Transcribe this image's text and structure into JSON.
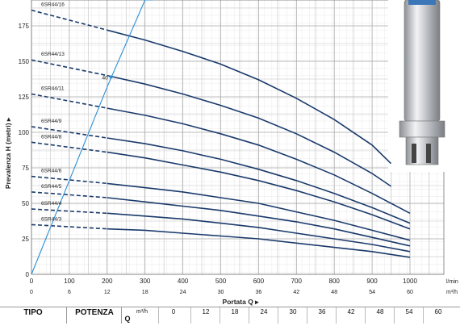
{
  "chart_data": {
    "type": "line",
    "xlabel": "Portata Q",
    "ylabel": "Prevalenza H (metri)",
    "x_unit_primary": "l/min",
    "x_unit_secondary": "m³/h",
    "xlim": [
      0,
      1050
    ],
    "ylim": [
      0,
      200
    ],
    "x_ticks": [
      0,
      100,
      200,
      300,
      400,
      500,
      600,
      700,
      800,
      900,
      1000
    ],
    "x_ticks_secondary": [
      0,
      6,
      12,
      18,
      24,
      30,
      36,
      42,
      48,
      54,
      60
    ],
    "y_ticks": [
      0,
      25,
      50,
      75,
      100,
      125,
      150,
      175
    ],
    "grid": true,
    "series": [
      {
        "name": "6SR44/16",
        "values": [
          [
            0,
            186
          ],
          [
            200,
            172
          ],
          [
            300,
            165
          ],
          [
            400,
            157
          ],
          [
            500,
            148
          ],
          [
            600,
            137
          ],
          [
            700,
            124
          ],
          [
            800,
            109
          ],
          [
            900,
            91
          ],
          [
            950,
            78
          ]
        ]
      },
      {
        "name": "6SR44/13",
        "values": [
          [
            0,
            151
          ],
          [
            200,
            140
          ],
          [
            300,
            134
          ],
          [
            400,
            127
          ],
          [
            500,
            119
          ],
          [
            600,
            110
          ],
          [
            700,
            99
          ],
          [
            800,
            86
          ],
          [
            900,
            71
          ],
          [
            950,
            62
          ]
        ]
      },
      {
        "name": "6SR44/11",
        "values": [
          [
            0,
            127
          ],
          [
            200,
            117
          ],
          [
            300,
            112
          ],
          [
            400,
            106
          ],
          [
            500,
            99
          ],
          [
            600,
            91
          ],
          [
            700,
            81
          ],
          [
            800,
            70
          ],
          [
            900,
            57
          ],
          [
            1000,
            43
          ]
        ]
      },
      {
        "name": "6SR44/9",
        "values": [
          [
            0,
            104
          ],
          [
            200,
            96
          ],
          [
            300,
            92
          ],
          [
            400,
            87
          ],
          [
            500,
            81
          ],
          [
            600,
            74
          ],
          [
            700,
            66
          ],
          [
            800,
            57
          ],
          [
            900,
            47
          ],
          [
            1000,
            36
          ]
        ]
      },
      {
        "name": "6SR44/8",
        "values": [
          [
            0,
            93
          ],
          [
            200,
            86
          ],
          [
            300,
            82
          ],
          [
            400,
            77
          ],
          [
            500,
            72
          ],
          [
            600,
            66
          ],
          [
            700,
            59
          ],
          [
            800,
            51
          ],
          [
            900,
            42
          ],
          [
            1000,
            32
          ]
        ]
      },
      {
        "name": "6SR44/6",
        "values": [
          [
            0,
            69
          ],
          [
            200,
            64
          ],
          [
            300,
            61
          ],
          [
            400,
            58
          ],
          [
            500,
            54
          ],
          [
            600,
            50
          ],
          [
            700,
            44
          ],
          [
            800,
            38
          ],
          [
            900,
            31
          ],
          [
            1000,
            24
          ]
        ]
      },
      {
        "name": "6SR44/5",
        "values": [
          [
            0,
            58
          ],
          [
            200,
            54
          ],
          [
            300,
            51
          ],
          [
            400,
            48
          ],
          [
            500,
            45
          ],
          [
            600,
            41
          ],
          [
            700,
            37
          ],
          [
            800,
            32
          ],
          [
            900,
            26
          ],
          [
            1000,
            20
          ]
        ]
      },
      {
        "name": "6SR44/4",
        "values": [
          [
            0,
            46
          ],
          [
            200,
            43
          ],
          [
            300,
            41
          ],
          [
            400,
            39
          ],
          [
            500,
            36
          ],
          [
            600,
            33
          ],
          [
            700,
            29
          ],
          [
            800,
            25
          ],
          [
            900,
            21
          ],
          [
            1000,
            16
          ]
        ]
      },
      {
        "name": "6SR44/3",
        "values": [
          [
            0,
            35
          ],
          [
            200,
            32
          ],
          [
            300,
            31
          ],
          [
            400,
            29
          ],
          [
            500,
            27
          ],
          [
            600,
            25
          ],
          [
            700,
            22
          ],
          [
            800,
            19
          ],
          [
            900,
            16
          ],
          [
            1000,
            12
          ]
        ]
      }
    ],
    "reference_curve": {
      "label": "40",
      "values": [
        [
          0,
          0
        ],
        [
          100,
          66
        ],
        [
          200,
          132
        ],
        [
          300,
          194
        ],
        [
          320,
          205
        ]
      ]
    },
    "series_color": "#1a3a6b",
    "reference_color": "#2a8fd6"
  },
  "table": {
    "tipo_label": "TIPO",
    "potenza_label": "POTENZA",
    "q_label": "Q",
    "unit": "m³/h",
    "values": [
      "0",
      "12",
      "18",
      "24",
      "30",
      "36",
      "42",
      "48",
      "54",
      "60"
    ]
  },
  "photo": {
    "caption": ""
  }
}
